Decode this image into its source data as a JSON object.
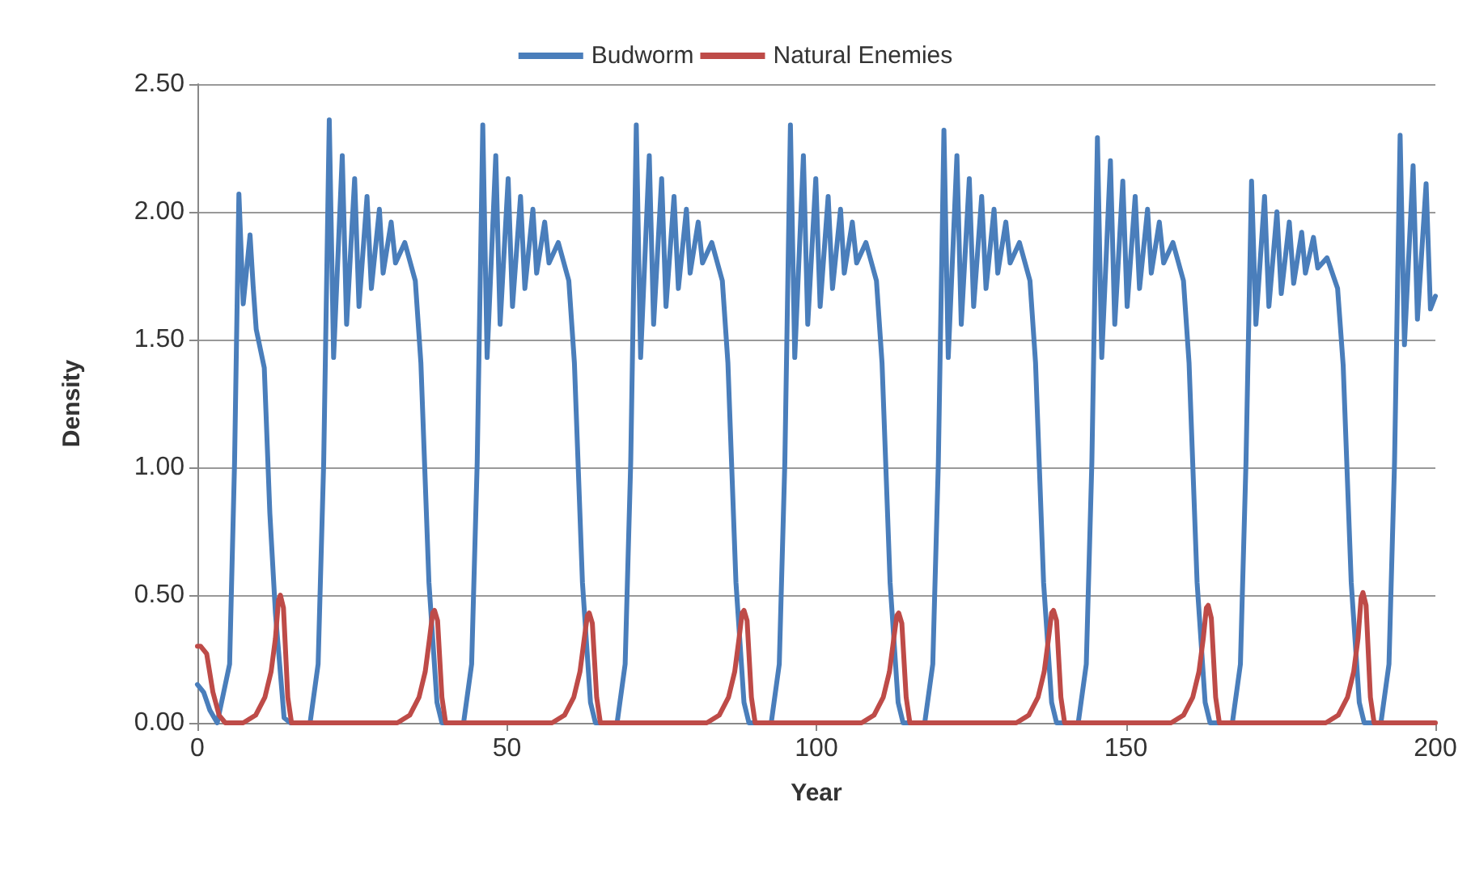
{
  "chart_data": {
    "type": "line",
    "xlabel": "Year",
    "ylabel": "Density",
    "xlim": [
      0,
      200
    ],
    "xticks": [
      0,
      50,
      100,
      150,
      200
    ],
    "ylim": [
      0,
      2.5
    ],
    "yticks": [
      {
        "value": 0,
        "label": "0.00"
      },
      {
        "value": 0.5,
        "label": "0.50"
      },
      {
        "value": 1,
        "label": "1.00"
      },
      {
        "value": 1.5,
        "label": "1.50"
      },
      {
        "value": 2,
        "label": "2.00"
      },
      {
        "value": 2.5,
        "label": "2.50"
      }
    ],
    "grid": "y",
    "legend": "top",
    "marker": "none",
    "line_style": "solid",
    "series": [
      {
        "name": "Budworm",
        "color": "#4a7ebb",
        "x": [
          0,
          1,
          2,
          3.2,
          5.2,
          6.0,
          6.7,
          7.4,
          8.5,
          9.0,
          9.5,
          10.8,
          11.7,
          12.6,
          14.0,
          15.0,
          18.2,
          19.5,
          20.4,
          21.3,
          22.0,
          23.4,
          24.1,
          25.4,
          26.1,
          27.4,
          28.1,
          29.4,
          30.0,
          31.3,
          32.0,
          33.5,
          35.2,
          36.1,
          37.4,
          38.7,
          39.5,
          43.0,
          44.3,
          45.2,
          46.1,
          46.8,
          48.2,
          48.9,
          50.2,
          50.9,
          52.2,
          52.9,
          54.2,
          54.8,
          56.1,
          56.8,
          58.3,
          60.0,
          60.9,
          62.2,
          63.5,
          64.3,
          67.8,
          69.1,
          70.0,
          70.9,
          71.6,
          73.0,
          73.7,
          75.0,
          75.7,
          77.0,
          77.7,
          79.0,
          79.6,
          80.9,
          81.6,
          83.1,
          84.8,
          85.7,
          87.0,
          88.3,
          89.1,
          92.7,
          94.0,
          94.9,
          95.8,
          96.5,
          97.9,
          98.6,
          99.9,
          100.6,
          101.9,
          102.6,
          103.9,
          104.5,
          105.8,
          106.5,
          108.0,
          109.7,
          110.6,
          111.9,
          113.2,
          114.0,
          117.5,
          118.8,
          119.7,
          120.6,
          121.3,
          122.7,
          123.4,
          124.7,
          125.4,
          126.7,
          127.4,
          128.7,
          129.3,
          130.6,
          131.3,
          132.8,
          134.5,
          135.4,
          136.7,
          138.0,
          138.8,
          142.3,
          143.6,
          144.5,
          145.4,
          146.1,
          147.5,
          148.2,
          149.5,
          150.2,
          151.5,
          152.2,
          153.5,
          154.1,
          155.4,
          156.1,
          157.6,
          159.3,
          160.2,
          161.5,
          162.8,
          163.6,
          167.2,
          168.5,
          169.4,
          170.3,
          171.0,
          172.4,
          173.1,
          174.4,
          175.1,
          176.4,
          177.1,
          178.4,
          179.0,
          180.3,
          181.0,
          182.5,
          184.2,
          185.1,
          186.4,
          187.7,
          188.5,
          191.2,
          192.5,
          193.4,
          194.3,
          195.0,
          196.4,
          197.1,
          198.5,
          199.2,
          200
        ],
        "values": [
          0.15,
          0.12,
          0.05,
          0,
          0.23,
          1.02,
          2.07,
          1.64,
          1.91,
          1.71,
          1.54,
          1.39,
          0.82,
          0.43,
          0.02,
          0,
          0,
          0.23,
          1.02,
          2.36,
          1.43,
          2.22,
          1.56,
          2.13,
          1.63,
          2.06,
          1.7,
          2.01,
          1.76,
          1.96,
          1.8,
          1.88,
          1.73,
          1.41,
          0.55,
          0.08,
          0,
          0,
          0.23,
          1.02,
          2.34,
          1.43,
          2.22,
          1.56,
          2.13,
          1.63,
          2.06,
          1.7,
          2.01,
          1.76,
          1.96,
          1.8,
          1.88,
          1.73,
          1.41,
          0.55,
          0.08,
          0,
          0,
          0.23,
          1.02,
          2.34,
          1.43,
          2.22,
          1.56,
          2.13,
          1.63,
          2.06,
          1.7,
          2.01,
          1.76,
          1.96,
          1.8,
          1.88,
          1.73,
          1.41,
          0.55,
          0.08,
          0,
          0,
          0.23,
          1.02,
          2.34,
          1.43,
          2.22,
          1.56,
          2.13,
          1.63,
          2.06,
          1.7,
          2.01,
          1.76,
          1.96,
          1.8,
          1.88,
          1.73,
          1.41,
          0.55,
          0.08,
          0,
          0,
          0.23,
          1.02,
          2.32,
          1.43,
          2.22,
          1.56,
          2.13,
          1.63,
          2.06,
          1.7,
          2.01,
          1.76,
          1.96,
          1.8,
          1.88,
          1.73,
          1.41,
          0.55,
          0.08,
          0,
          0,
          0.23,
          1.02,
          2.29,
          1.43,
          2.2,
          1.56,
          2.12,
          1.63,
          2.06,
          1.7,
          2.01,
          1.76,
          1.96,
          1.8,
          1.88,
          1.73,
          1.41,
          0.55,
          0.08,
          0,
          0,
          0.23,
          1.02,
          2.12,
          1.56,
          2.06,
          1.63,
          2.0,
          1.68,
          1.96,
          1.72,
          1.92,
          1.76,
          1.9,
          1.78,
          1.82,
          1.7,
          1.4,
          0.55,
          0.08,
          0,
          0,
          0.23,
          1.02,
          2.3,
          1.48,
          2.18,
          1.58,
          2.11,
          1.62,
          1.67
        ]
      },
      {
        "name": "Natural Enemies",
        "color": "#be4b48",
        "x": [
          0,
          0.5,
          1.5,
          2.5,
          3.5,
          4.5,
          7.4,
          9.4,
          10.9,
          11.9,
          12.6,
          13.1,
          13.4,
          13.9,
          14.6,
          15.2,
          32.3,
          34.3,
          35.8,
          36.8,
          37.5,
          38.0,
          38.3,
          38.8,
          39.5,
          40.1,
          57.3,
          59.3,
          60.8,
          61.8,
          62.5,
          63.0,
          63.3,
          63.8,
          64.5,
          65.1,
          82.3,
          84.3,
          85.8,
          86.8,
          87.5,
          88.0,
          88.3,
          88.8,
          89.5,
          90.1,
          107.3,
          109.3,
          110.8,
          111.8,
          112.5,
          113.0,
          113.3,
          113.8,
          114.5,
          115.1,
          132.3,
          134.3,
          135.8,
          136.8,
          137.5,
          138.0,
          138.3,
          138.8,
          139.5,
          140.1,
          157.3,
          159.3,
          160.8,
          161.8,
          162.5,
          163.0,
          163.3,
          163.8,
          164.5,
          165.1,
          182.3,
          184.3,
          185.8,
          186.8,
          187.5,
          188.0,
          188.3,
          188.8,
          189.5,
          190.1,
          200
        ],
        "values": [
          0.3,
          0.3,
          0.27,
          0.12,
          0.03,
          0,
          0,
          0.03,
          0.1,
          0.2,
          0.33,
          0.48,
          0.5,
          0.45,
          0.1,
          0,
          0,
          0.03,
          0.1,
          0.2,
          0.33,
          0.43,
          0.44,
          0.4,
          0.1,
          0,
          0,
          0.03,
          0.1,
          0.2,
          0.33,
          0.42,
          0.43,
          0.39,
          0.1,
          0,
          0,
          0.03,
          0.1,
          0.2,
          0.33,
          0.43,
          0.44,
          0.4,
          0.1,
          0,
          0,
          0.03,
          0.1,
          0.2,
          0.33,
          0.42,
          0.43,
          0.39,
          0.1,
          0,
          0,
          0.03,
          0.1,
          0.2,
          0.33,
          0.43,
          0.44,
          0.4,
          0.1,
          0,
          0,
          0.03,
          0.1,
          0.2,
          0.33,
          0.45,
          0.46,
          0.41,
          0.1,
          0,
          0,
          0.03,
          0.1,
          0.2,
          0.33,
          0.49,
          0.51,
          0.46,
          0.1,
          0,
          0
        ]
      }
    ]
  }
}
